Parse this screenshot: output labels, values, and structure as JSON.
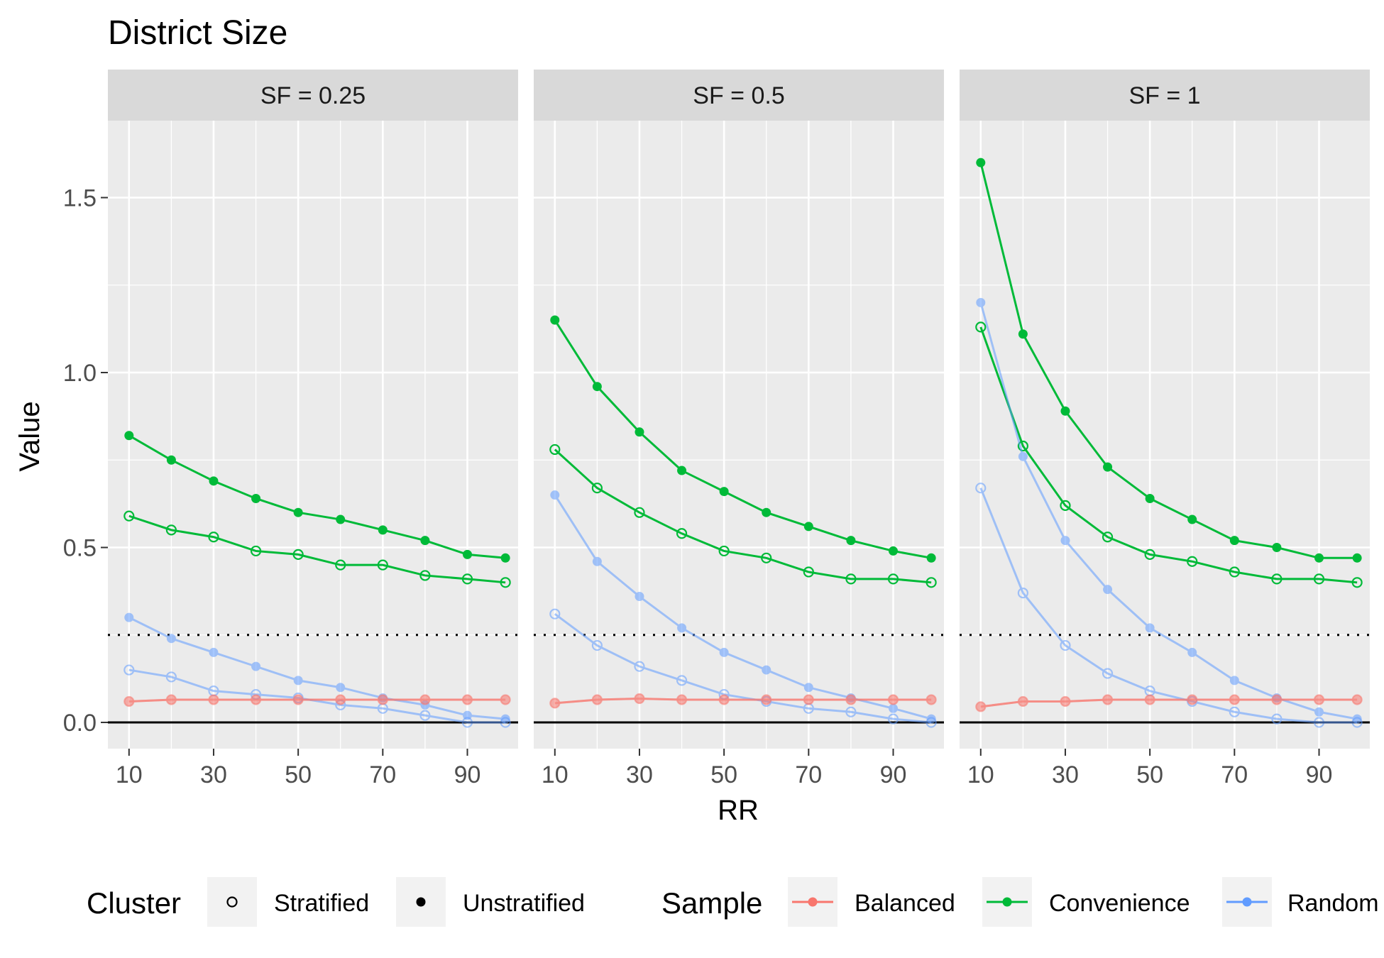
{
  "chart_data": {
    "type": "line",
    "title": "District Size",
    "xlabel": "RR",
    "ylabel": "Value",
    "xlim": [
      5,
      102
    ],
    "ylim": [
      -0.075,
      1.72
    ],
    "x_ticks": [
      10,
      30,
      50,
      70,
      90
    ],
    "y_ticks": [
      0.0,
      0.5,
      1.0,
      1.5
    ],
    "y_tick_labels": [
      "0.0",
      "0.5",
      "1.0",
      "1.5"
    ],
    "reference_lines": [
      {
        "y": 0.0,
        "style": "solid"
      },
      {
        "y": 0.25,
        "style": "dotted"
      }
    ],
    "grid": true,
    "x": [
      10,
      20,
      30,
      40,
      50,
      60,
      70,
      80,
      90,
      99
    ],
    "colors": {
      "Balanced": "#F8766D",
      "Convenience": "#00BA38",
      "Random": "#619CFF"
    },
    "panels": [
      {
        "label": "SF = 0.25",
        "series": [
          {
            "sample": "Convenience",
            "cluster": "Unstratified",
            "values": [
              0.82,
              0.75,
              0.69,
              0.64,
              0.6,
              0.58,
              0.55,
              0.52,
              0.48,
              0.47
            ]
          },
          {
            "sample": "Convenience",
            "cluster": "Stratified",
            "values": [
              0.59,
              0.55,
              0.53,
              0.49,
              0.48,
              0.45,
              0.45,
              0.42,
              0.41,
              0.4
            ]
          },
          {
            "sample": "Random",
            "cluster": "Unstratified",
            "values": [
              0.3,
              0.24,
              0.2,
              0.16,
              0.12,
              0.1,
              0.07,
              0.05,
              0.02,
              0.01
            ]
          },
          {
            "sample": "Random",
            "cluster": "Stratified",
            "values": [
              0.15,
              0.13,
              0.09,
              0.08,
              0.07,
              0.05,
              0.04,
              0.02,
              0.0,
              0.0
            ]
          },
          {
            "sample": "Balanced",
            "cluster": "Unstratified",
            "values": [
              0.06,
              0.065,
              0.065,
              0.065,
              0.065,
              0.065,
              0.065,
              0.065,
              0.065,
              0.065
            ]
          },
          {
            "sample": "Balanced",
            "cluster": "Stratified",
            "values": [
              0.06,
              0.065,
              0.065,
              0.065,
              0.065,
              0.065,
              0.065,
              0.065,
              0.065,
              0.065
            ]
          }
        ]
      },
      {
        "label": "SF = 0.5",
        "series": [
          {
            "sample": "Convenience",
            "cluster": "Unstratified",
            "values": [
              1.15,
              0.96,
              0.83,
              0.72,
              0.66,
              0.6,
              0.56,
              0.52,
              0.49,
              0.47
            ]
          },
          {
            "sample": "Convenience",
            "cluster": "Stratified",
            "values": [
              0.78,
              0.67,
              0.6,
              0.54,
              0.49,
              0.47,
              0.43,
              0.41,
              0.41,
              0.4
            ]
          },
          {
            "sample": "Random",
            "cluster": "Unstratified",
            "values": [
              0.65,
              0.46,
              0.36,
              0.27,
              0.2,
              0.15,
              0.1,
              0.07,
              0.04,
              0.01
            ]
          },
          {
            "sample": "Random",
            "cluster": "Stratified",
            "values": [
              0.31,
              0.22,
              0.16,
              0.12,
              0.08,
              0.06,
              0.04,
              0.03,
              0.01,
              0.0
            ]
          },
          {
            "sample": "Balanced",
            "cluster": "Unstratified",
            "values": [
              0.055,
              0.065,
              0.068,
              0.065,
              0.065,
              0.065,
              0.065,
              0.065,
              0.065,
              0.065
            ]
          },
          {
            "sample": "Balanced",
            "cluster": "Stratified",
            "values": [
              0.055,
              0.065,
              0.068,
              0.065,
              0.065,
              0.065,
              0.065,
              0.065,
              0.065,
              0.065
            ]
          }
        ]
      },
      {
        "label": "SF = 1",
        "series": [
          {
            "sample": "Convenience",
            "cluster": "Unstratified",
            "values": [
              1.6,
              1.11,
              0.89,
              0.73,
              0.64,
              0.58,
              0.52,
              0.5,
              0.47,
              0.47
            ]
          },
          {
            "sample": "Convenience",
            "cluster": "Stratified",
            "values": [
              1.13,
              0.79,
              0.62,
              0.53,
              0.48,
              0.46,
              0.43,
              0.41,
              0.41,
              0.4
            ]
          },
          {
            "sample": "Random",
            "cluster": "Unstratified",
            "values": [
              1.2,
              0.76,
              0.52,
              0.38,
              0.27,
              0.2,
              0.12,
              0.07,
              0.03,
              0.01
            ]
          },
          {
            "sample": "Random",
            "cluster": "Stratified",
            "values": [
              0.67,
              0.37,
              0.22,
              0.14,
              0.09,
              0.06,
              0.03,
              0.01,
              0.0,
              0.0
            ]
          },
          {
            "sample": "Balanced",
            "cluster": "Unstratified",
            "values": [
              0.045,
              0.06,
              0.06,
              0.065,
              0.065,
              0.065,
              0.065,
              0.065,
              0.065,
              0.065
            ]
          },
          {
            "sample": "Balanced",
            "cluster": "Stratified",
            "values": [
              0.045,
              0.06,
              0.06,
              0.065,
              0.065,
              0.065,
              0.065,
              0.065,
              0.065,
              0.065
            ]
          }
        ]
      }
    ],
    "legend": {
      "position": "bottom",
      "cluster_title": "Cluster",
      "cluster_entries": [
        "Stratified",
        "Unstratified"
      ],
      "sample_title": "Sample",
      "sample_entries": [
        "Balanced",
        "Convenience",
        "Random"
      ]
    }
  }
}
